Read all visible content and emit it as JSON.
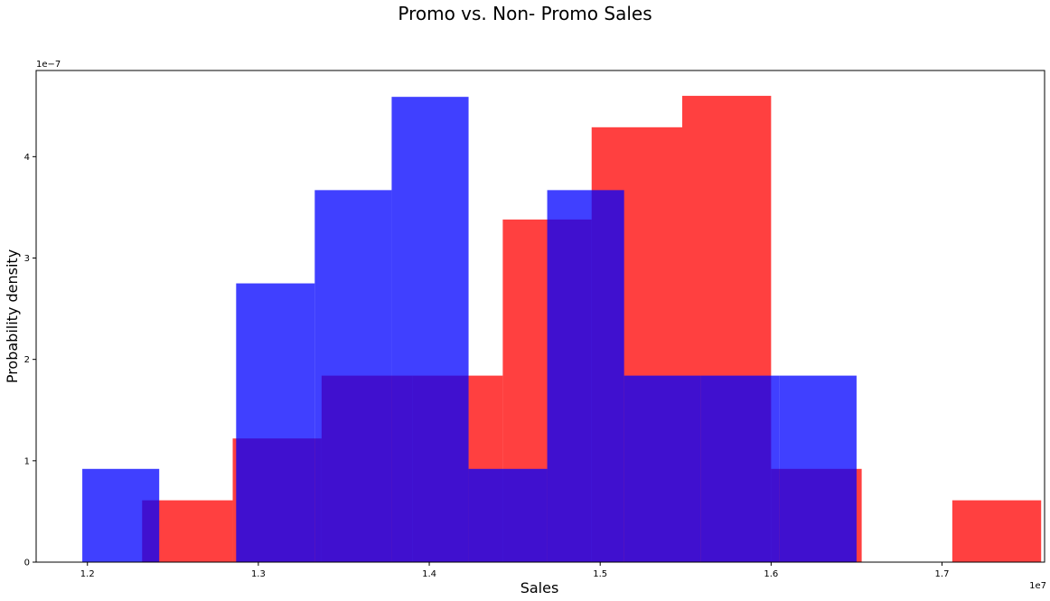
{
  "chart_data": {
    "type": "histogram",
    "title": "Promo vs. Non- Promo Sales",
    "xlabel": "Sales",
    "ylabel": "Probability density",
    "x_offset_label": "1e7",
    "y_offset_label": "1e−7",
    "x_scale": 10000000,
    "y_scale": 1e-07,
    "xlim": [
      11700000,
      17600000
    ],
    "ylim": [
      0,
      4.85
    ],
    "x_ticks": [
      12000000,
      13000000,
      14000000,
      15000000,
      16000000,
      17000000
    ],
    "x_tick_labels": [
      "1.2",
      "1.3",
      "1.4",
      "1.5",
      "1.6",
      "1.7"
    ],
    "y_ticks": [
      0,
      1,
      2,
      3,
      4
    ],
    "y_tick_labels": [
      "0",
      "1",
      "2",
      "3",
      "4"
    ],
    "grid": false,
    "series": [
      {
        "color": "#ff0000",
        "alpha": 0.75,
        "bins": [
          {
            "x0": 12320000,
            "x1": 12850000,
            "density": 0.61
          },
          {
            "x0": 12850000,
            "x1": 13370000,
            "density": 1.22
          },
          {
            "x0": 13370000,
            "x1": 13900000,
            "density": 1.84
          },
          {
            "x0": 13900000,
            "x1": 14430000,
            "density": 1.84
          },
          {
            "x0": 14430000,
            "x1": 14950000,
            "density": 3.38
          },
          {
            "x0": 14950000,
            "x1": 15480000,
            "density": 4.29
          },
          {
            "x0": 15480000,
            "x1": 16000000,
            "density": 4.6
          },
          {
            "x0": 16000000,
            "x1": 16530000,
            "density": 0.92
          },
          {
            "x0": 16530000,
            "x1": 17060000,
            "density": 0
          },
          {
            "x0": 17060000,
            "x1": 17580000,
            "density": 0.61
          }
        ]
      },
      {
        "color": "#0000ff",
        "alpha": 0.75,
        "bins": [
          {
            "x0": 11970000,
            "x1": 12420000,
            "density": 0.92
          },
          {
            "x0": 12420000,
            "x1": 12870000,
            "density": 0
          },
          {
            "x0": 12870000,
            "x1": 13330000,
            "density": 2.75
          },
          {
            "x0": 13330000,
            "x1": 13780000,
            "density": 3.67
          },
          {
            "x0": 13780000,
            "x1": 14230000,
            "density": 4.59
          },
          {
            "x0": 14230000,
            "x1": 14690000,
            "density": 0.92
          },
          {
            "x0": 14690000,
            "x1": 15140000,
            "density": 3.67
          },
          {
            "x0": 15140000,
            "x1": 15590000,
            "density": 1.84
          },
          {
            "x0": 15590000,
            "x1": 16050000,
            "density": 1.84
          },
          {
            "x0": 16050000,
            "x1": 16500000,
            "density": 1.84
          }
        ]
      }
    ]
  }
}
